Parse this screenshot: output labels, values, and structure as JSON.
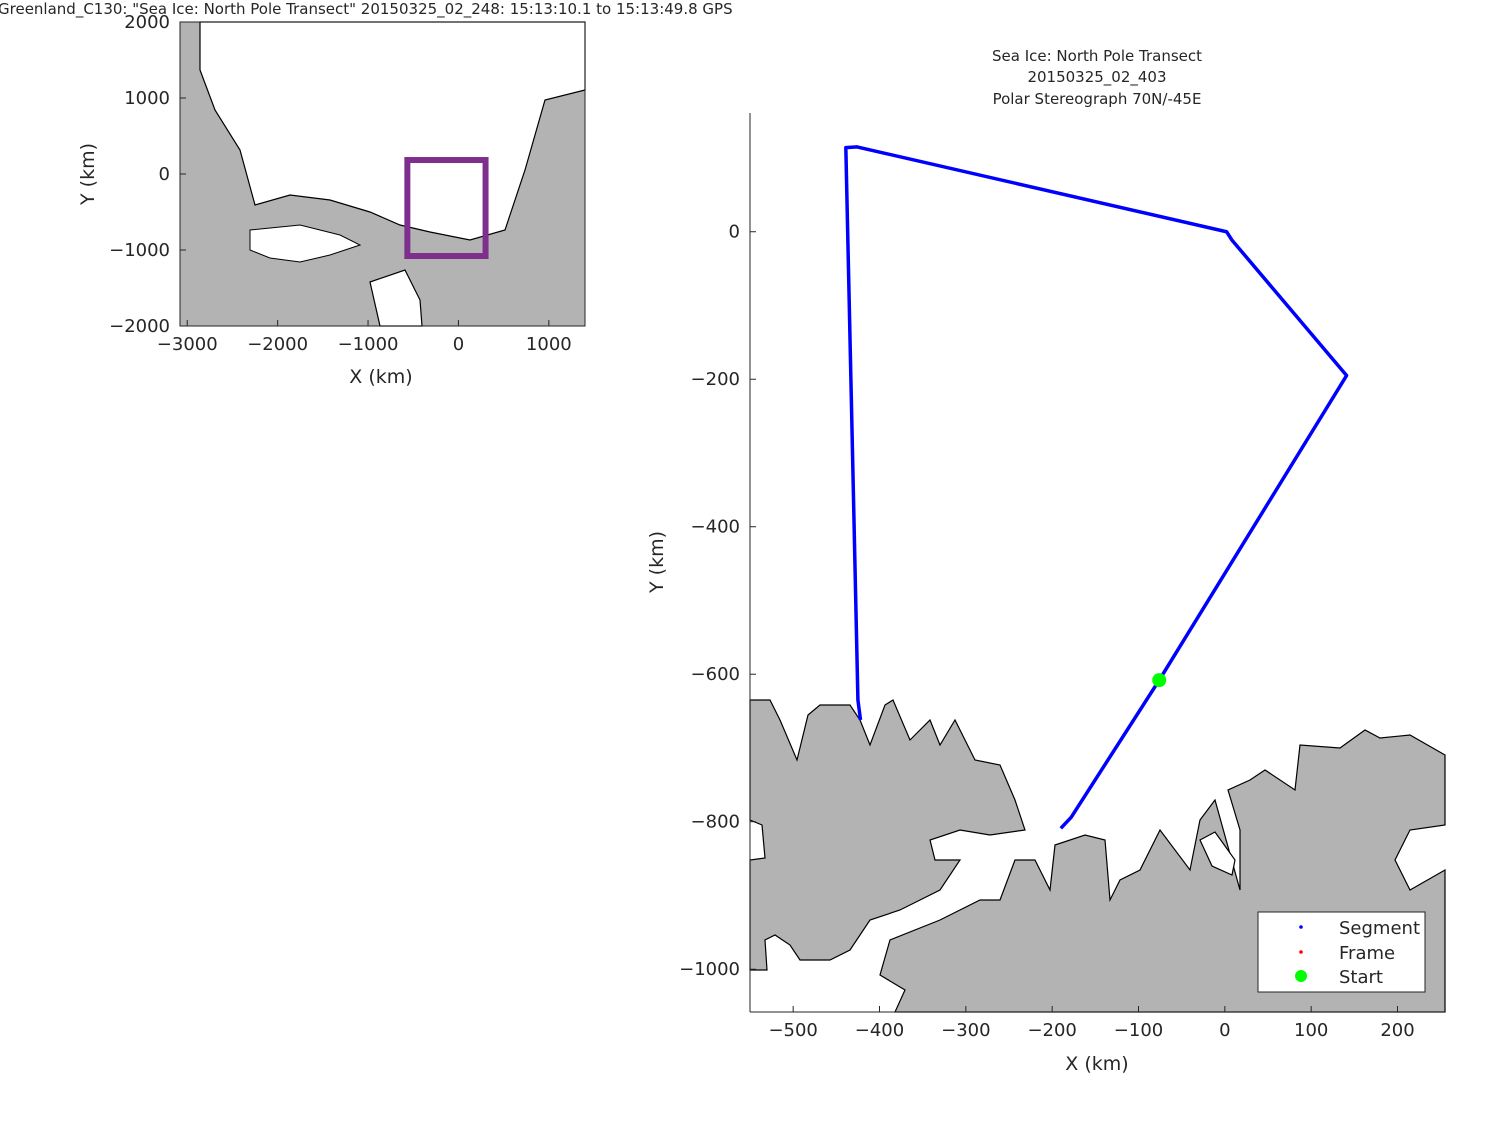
{
  "figure_title": "Greenland_C130: \"Sea Ice: North Pole Transect\"  20150325_02_248: 15:13:10.1 to 15:13:49.8 GPS",
  "colors": {
    "land": "#b3b3b3",
    "segment": "#0000ff",
    "frame": "#ff0000",
    "start": "#00ff00",
    "box": "#7e2f8e"
  },
  "chart_data": [
    {
      "type": "map",
      "xlabel": "X (km)",
      "ylabel": "Y (km)",
      "xlim": [
        -3080,
        1400
      ],
      "ylim": [
        -2000,
        2000
      ],
      "xticks": [
        -3000,
        -2000,
        -1000,
        0,
        1000
      ],
      "yticks": [
        -2000,
        -1000,
        0,
        1000,
        2000
      ],
      "highlight_box": {
        "x": [
          -565,
          300
        ],
        "y": [
          -1079,
          184
        ]
      }
    },
    {
      "type": "line",
      "title": [
        "Sea Ice: North Pole Transect",
        "20150325_02_403",
        "Polar Stereograph 70N/-45E"
      ],
      "xlabel": "X (km)",
      "ylabel": "Y (km)",
      "xlim": [
        -550,
        255
      ],
      "ylim": [
        -1058,
        161
      ],
      "xticks": [
        -500,
        -400,
        -300,
        -200,
        -100,
        0,
        100,
        200
      ],
      "yticks": [
        -1000,
        -800,
        -600,
        -400,
        -200,
        0
      ],
      "series": [
        {
          "name": "Segment",
          "x": [
            -190,
            -178,
            -76,
            141,
            8,
            2,
            -426,
            -439,
            -425,
            -422
          ],
          "y": [
            -809,
            -794,
            -608,
            -195,
            -11,
            0,
            115,
            114,
            -635,
            -662
          ]
        }
      ],
      "start": {
        "x": -76,
        "y": -608
      },
      "legend": {
        "position": "bottom-right",
        "entries": [
          "Segment",
          "Frame",
          "Start"
        ]
      }
    }
  ]
}
